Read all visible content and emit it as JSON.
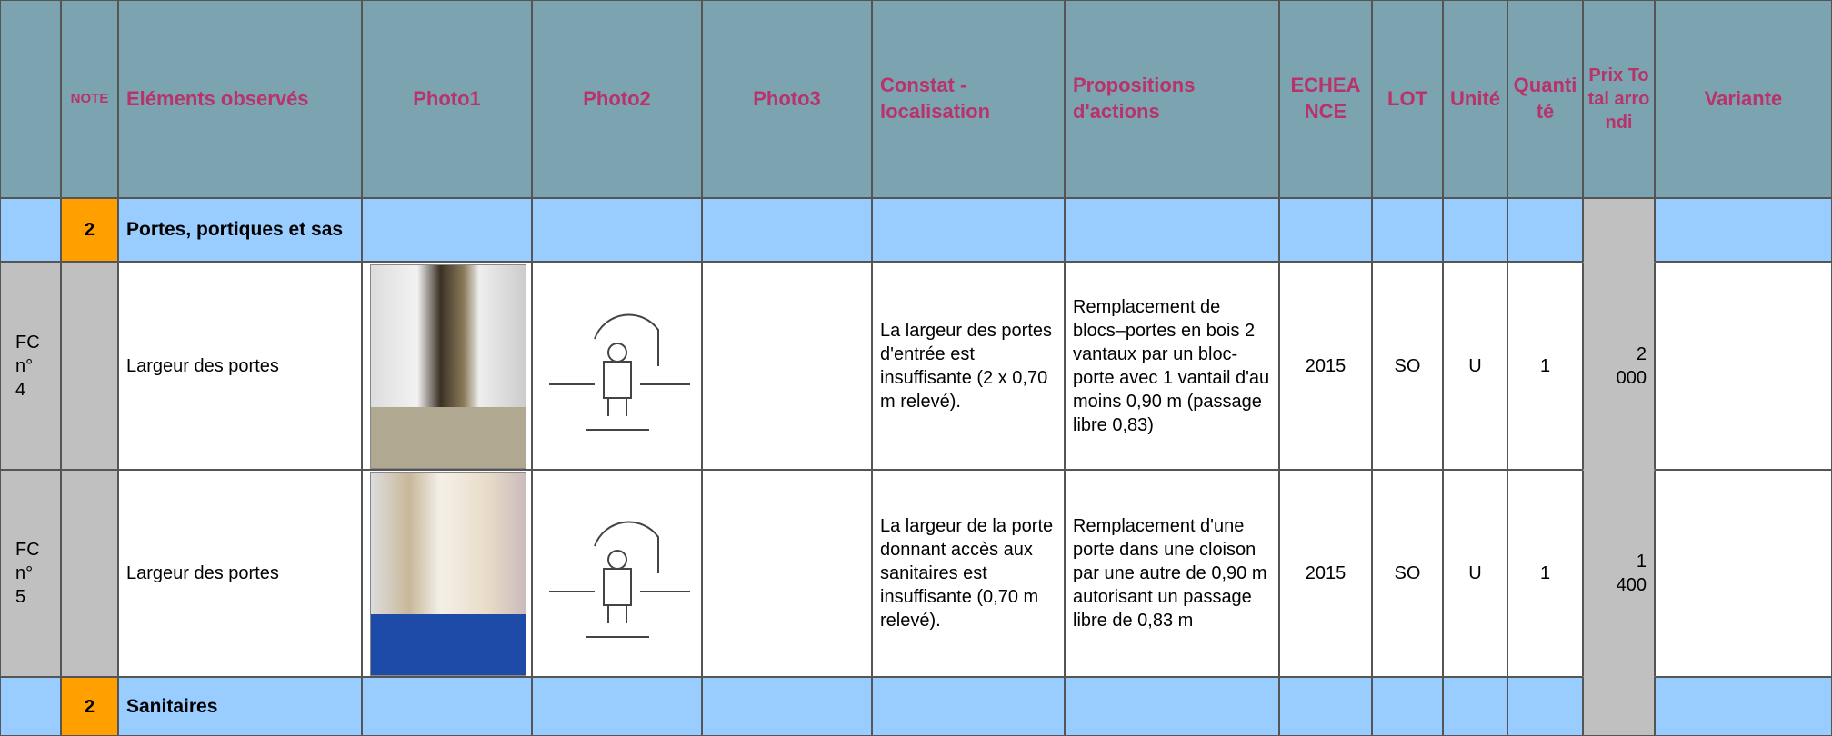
{
  "header": [
    "NOTE",
    "Eléments observés",
    "Photo1",
    "Photo2",
    "Photo3",
    "Constat - localisation",
    "Propositions d'actions",
    "ECHEANCE",
    "LOT",
    "Unité",
    "Quantité",
    "Prix Total arrondi",
    "Variante"
  ],
  "rows": [
    {
      "kind": "section",
      "note": "2",
      "title": "Portes, portiques et sas"
    },
    {
      "kind": "item",
      "ref": "FC n° 4",
      "element": "Largeur des portes",
      "constat": "La largeur des portes d'entrée est insuffisante (2 x 0,70 m relevé).",
      "proposition": "Remplacement de blocs–portes en bois 2 vantaux par un bloc-porte avec 1 vantail d'au moins 0,90 m (passage libre 0,83)",
      "echeance": "2015",
      "lot": "SO",
      "unite": "U",
      "quantite": "1",
      "prix": "2 000"
    },
    {
      "kind": "item",
      "ref": "FC n° 5",
      "element": "Largeur des portes",
      "constat": "La largeur de la porte donnant accès aux sanitaires est insuffisante (0,70 m relevé).",
      "proposition": "Remplacement d'une porte dans une cloison par une autre de 0,90 m autorisant un passage libre de 0,83 m",
      "echeance": "2015",
      "lot": "SO",
      "unite": "U",
      "quantite": "1",
      "prix": "1 400"
    },
    {
      "kind": "section",
      "note": "2",
      "title": "Sanitaires"
    }
  ]
}
